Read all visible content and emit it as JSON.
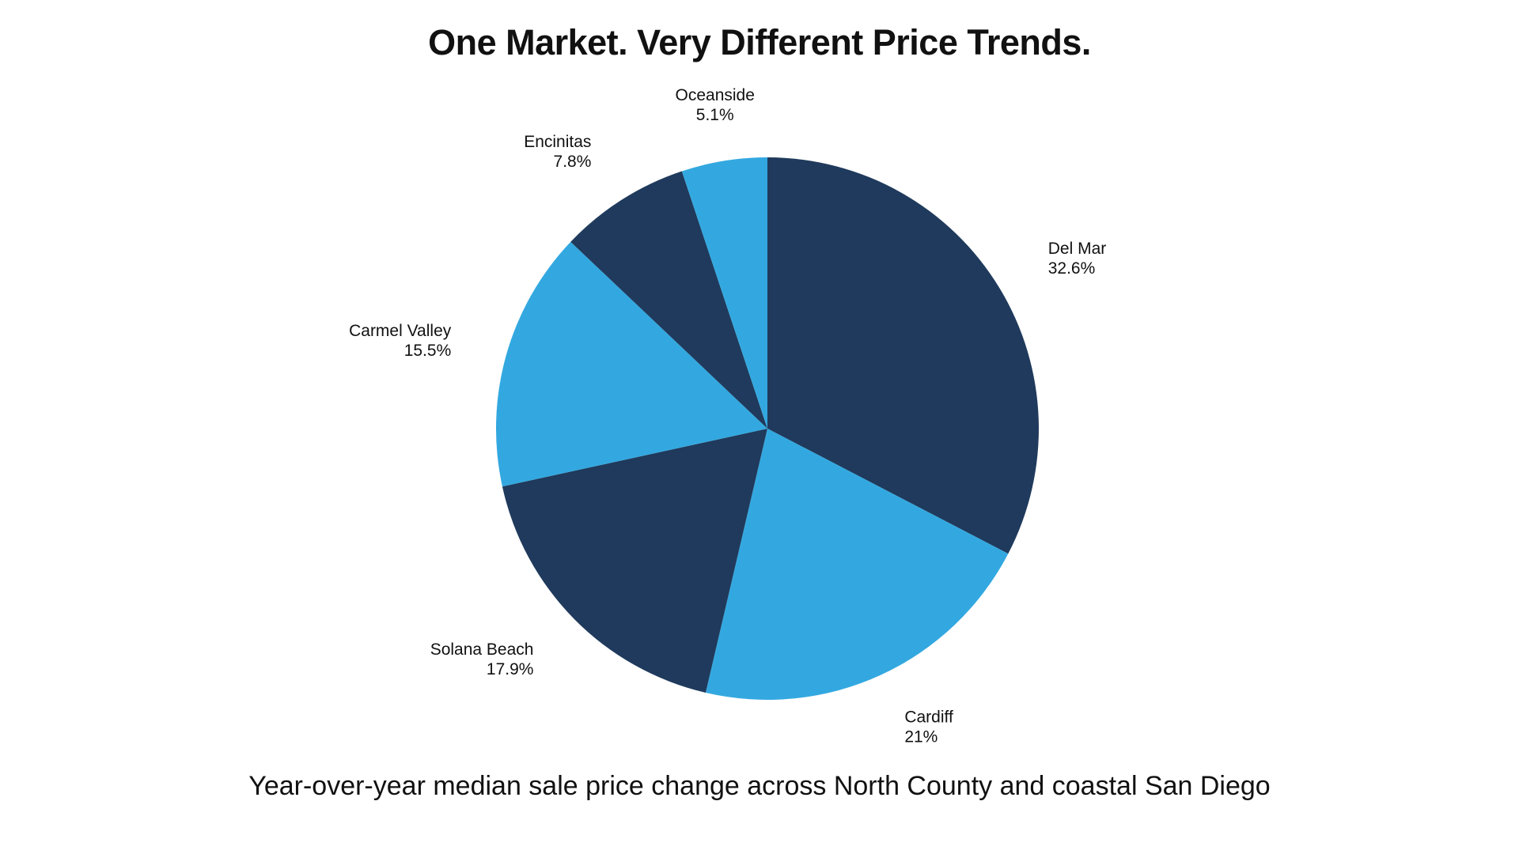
{
  "chart_data": {
    "type": "pie",
    "title": "One Market. Very Different Price Trends.",
    "subtitle": "Year-over-year median sale price change across North County and coastal San Diego",
    "categories": [
      "Del Mar",
      "Cardiff",
      "Solana Beach",
      "Carmel Valley",
      "Encinitas",
      "Oceanside"
    ],
    "values": [
      32.6,
      21,
      17.9,
      15.5,
      7.8,
      5.1
    ],
    "value_labels": [
      "32.6%",
      "21%",
      "17.9%",
      "15.5%",
      "7.8%",
      "5.1%"
    ],
    "colors": [
      "#1f3a5c",
      "#33a8e0",
      "#1f3a5c",
      "#33a8e0",
      "#1f3a5c",
      "#33a8e0"
    ],
    "start_angle_deg": 0,
    "direction": "clockwise",
    "legend": "none",
    "slice_labels": "outside"
  }
}
